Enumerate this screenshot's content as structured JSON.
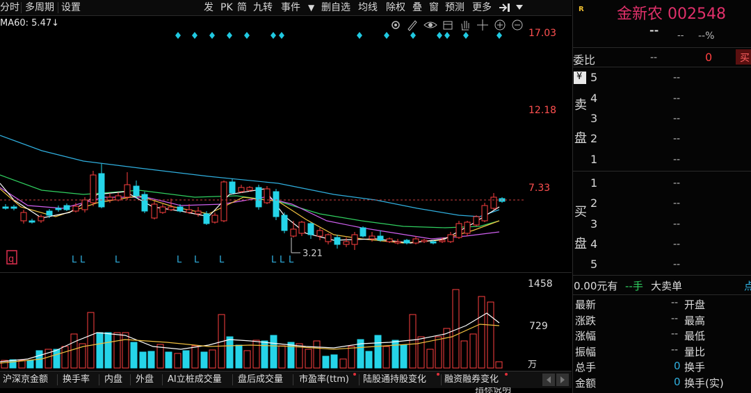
{
  "toolbar": {
    "items": [
      "分时",
      "多周期",
      "设置",
      "发",
      "PK",
      "简",
      "九转",
      "事件",
      "▼",
      "删自选",
      "均线",
      "除权",
      "叠",
      "窗",
      "预测",
      "更多"
    ]
  },
  "ma_label": "MA60: 5.47↓",
  "price_axis": {
    "top": "17.03",
    "mid": "12.18",
    "low": "7.33"
  },
  "low_marker": "3.21",
  "volume_axis": {
    "top": "1458",
    "mid": "729",
    "unit": "万"
  },
  "signal_letter": "L",
  "q_marker": "q",
  "tabs": [
    "沪深京金额",
    "换手率",
    "内盘",
    "外盘",
    "AI立桩成交量",
    "盘后成交量",
    "市盈率(ttm)",
    "陆股通持股变化",
    "融资融券变化"
  ],
  "indicator_footer": "指标说明",
  "quote": {
    "r_mark": "R",
    "name": "金新农 002548",
    "price": "--",
    "change": "--",
    "change_pct": "--%",
    "weibi_label": "委比",
    "weibi_value": "--",
    "weibi_diff": "0",
    "buy_btn": "买",
    "yen": "¥",
    "sell_label": [
      "卖",
      "盘"
    ],
    "buy_label": [
      "买",
      "盘"
    ],
    "sell_rows": [
      {
        "n": "5",
        "v": "--"
      },
      {
        "n": "4",
        "v": "--"
      },
      {
        "n": "3",
        "v": "--"
      },
      {
        "n": "2",
        "v": "--"
      },
      {
        "n": "1",
        "v": "--"
      }
    ],
    "buy_rows": [
      {
        "n": "1",
        "v": "--"
      },
      {
        "n": "2",
        "v": "--"
      },
      {
        "n": "3",
        "v": "--"
      },
      {
        "n": "4",
        "v": "--"
      },
      {
        "n": "5",
        "v": "--"
      }
    ],
    "big_order": {
      "amount": "0.00元有",
      "hand": "--手",
      "label": "大卖单",
      "more": "点"
    },
    "stats": [
      {
        "l": "最新",
        "v": "--",
        "l2": "开盘"
      },
      {
        "l": "涨跌",
        "v": "--",
        "l2": "最高"
      },
      {
        "l": "涨幅",
        "v": "--",
        "l2": "最低"
      },
      {
        "l": "振幅",
        "v": "--",
        "l2": "量比"
      },
      {
        "l": "总手",
        "v": "0",
        "l2": "换手"
      },
      {
        "l": "金额",
        "v": "0",
        "l2": "换手(实)"
      }
    ]
  },
  "colors": {
    "up": "#ff4040",
    "down": "#25d4e8",
    "accent": "#e0306a",
    "ma5": "#ffffff",
    "ma10": "#f0c040",
    "ma20": "#d060f0",
    "ma30": "#30d060",
    "ma60": "#30b0e0"
  }
}
